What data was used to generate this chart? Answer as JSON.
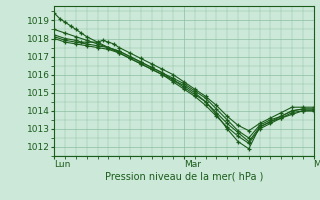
{
  "title": "Pression niveau de la mer( hPa )",
  "bg_color": "#cce8d8",
  "grid_color": "#8abfa0",
  "line_color": "#1a5c1a",
  "xlim": [
    0,
    48
  ],
  "ylim": [
    1011.5,
    1019.8
  ],
  "yticks": [
    1012,
    1013,
    1014,
    1015,
    1016,
    1017,
    1018,
    1019
  ],
  "xtick_positions": [
    0,
    24,
    48
  ],
  "xtick_labels": [
    "Lun",
    "Mar",
    "Mer"
  ],
  "series": [
    [
      0.0,
      1019.4,
      1.0,
      1019.1,
      2.0,
      1018.9,
      3.0,
      1018.7,
      4.0,
      1018.5,
      5.0,
      1018.3,
      6.0,
      1018.1,
      8.0,
      1017.8,
      10.0,
      1017.5,
      12.0,
      1017.2,
      14.0,
      1016.9,
      16.0,
      1016.6,
      18.0,
      1016.3,
      20.0,
      1016.0,
      22.0,
      1015.7,
      24.0,
      1015.4,
      26.0,
      1015.0,
      28.0,
      1014.5,
      30.0,
      1013.8,
      32.0,
      1013.0,
      34.0,
      1012.3,
      36.0,
      1011.9,
      38.0,
      1013.1,
      40.0,
      1013.4,
      42.0,
      1013.6,
      44.0,
      1013.8,
      46.0,
      1014.0,
      48.0,
      1014.0
    ],
    [
      0.0,
      1018.5,
      2.0,
      1018.3,
      4.0,
      1018.1,
      6.0,
      1017.9,
      8.0,
      1017.7,
      10.0,
      1017.5,
      12.0,
      1017.3,
      14.0,
      1017.0,
      16.0,
      1016.7,
      18.0,
      1016.4,
      20.0,
      1016.1,
      22.0,
      1015.8,
      24.0,
      1015.5,
      26.0,
      1015.1,
      28.0,
      1014.7,
      30.0,
      1014.1,
      32.0,
      1013.5,
      34.0,
      1012.9,
      36.0,
      1012.5,
      38.0,
      1013.2,
      40.0,
      1013.5,
      42.0,
      1013.7,
      44.0,
      1014.0,
      46.0,
      1014.1,
      48.0,
      1014.1
    ],
    [
      0.0,
      1018.2,
      2.0,
      1018.0,
      4.0,
      1017.9,
      5.0,
      1017.8,
      6.0,
      1017.8,
      8.0,
      1017.8,
      9.0,
      1017.9,
      10.0,
      1017.8,
      11.0,
      1017.7,
      12.0,
      1017.5,
      14.0,
      1017.2,
      16.0,
      1016.9,
      18.0,
      1016.6,
      20.0,
      1016.3,
      22.0,
      1016.0,
      24.0,
      1015.6,
      26.0,
      1015.2,
      28.0,
      1014.8,
      30.0,
      1014.3,
      32.0,
      1013.7,
      34.0,
      1013.2,
      36.0,
      1012.9,
      38.0,
      1013.3,
      40.0,
      1013.6,
      42.0,
      1013.9,
      44.0,
      1014.2,
      46.0,
      1014.2,
      48.0,
      1014.2
    ],
    [
      0.0,
      1018.1,
      2.0,
      1017.9,
      4.0,
      1017.8,
      6.0,
      1017.7,
      8.0,
      1017.6,
      10.0,
      1017.5,
      12.0,
      1017.3,
      14.0,
      1017.0,
      16.0,
      1016.7,
      18.0,
      1016.4,
      20.0,
      1016.1,
      22.0,
      1015.7,
      24.0,
      1015.3,
      26.0,
      1014.9,
      28.0,
      1014.5,
      30.0,
      1013.9,
      32.0,
      1013.3,
      34.0,
      1012.8,
      36.0,
      1012.3,
      38.0,
      1013.1,
      40.0,
      1013.4,
      42.0,
      1013.7,
      44.0,
      1014.0,
      46.0,
      1014.1,
      48.0,
      1014.1
    ],
    [
      0.0,
      1018.0,
      2.0,
      1017.8,
      4.0,
      1017.7,
      6.0,
      1017.6,
      8.0,
      1017.5,
      10.0,
      1017.4,
      12.0,
      1017.2,
      14.0,
      1016.9,
      16.0,
      1016.6,
      18.0,
      1016.3,
      20.0,
      1016.0,
      22.0,
      1015.6,
      24.0,
      1015.2,
      26.0,
      1014.8,
      28.0,
      1014.3,
      30.0,
      1013.7,
      32.0,
      1013.1,
      34.0,
      1012.6,
      36.0,
      1012.2,
      38.0,
      1013.0,
      40.0,
      1013.3,
      42.0,
      1013.6,
      44.0,
      1013.9,
      46.0,
      1014.0,
      48.0,
      1014.0
    ]
  ]
}
